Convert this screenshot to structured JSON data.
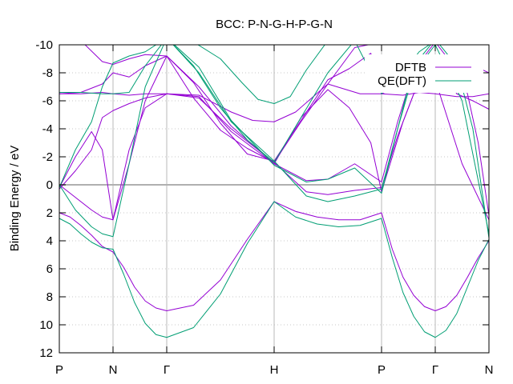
{
  "chart_data": {
    "type": "line",
    "title": "BCC: P-N-G-H-P-G-N",
    "xlabel": "",
    "ylabel": "Binding Energy / eV",
    "ylim": [
      -10,
      12
    ],
    "y_inverted": true,
    "y_ticks": [
      "-10",
      "-8",
      "-6",
      "-4",
      "-2",
      "0",
      "2",
      "4",
      "6",
      "8",
      "10",
      "12"
    ],
    "y_tick_values": [
      -10,
      -8,
      -6,
      -4,
      -2,
      0,
      2,
      4,
      6,
      8,
      10,
      12
    ],
    "xlim": [
      0,
      8
    ],
    "x_tick_values": [
      0,
      1,
      2,
      4,
      6,
      7,
      8
    ],
    "x_ticks": [
      "P",
      "N",
      "Γ",
      "H",
      "P",
      "Γ",
      "N"
    ],
    "grid": "dotted-y, solid-x-at-symmetry-points",
    "zero_line": 0,
    "legend_position": "top-right",
    "colors": {
      "DFTB": "#9400d3",
      "QE(DFT)": "#009e73",
      "zero": "#b0b0b0"
    },
    "series": [
      {
        "name": "DFTB",
        "color": "#9400d3",
        "bands": [
          {
            "x": [
              0,
              0.2,
              0.4,
              0.6,
              0.8,
              1.0,
              1.2,
              1.4,
              1.6,
              1.8,
              2.0,
              2.5,
              3.0,
              3.5,
              4.0,
              4.4,
              4.8,
              5.2,
              5.6,
              6.0,
              6.2,
              6.4,
              6.6,
              6.8,
              7.0,
              7.2,
              7.4,
              7.6,
              7.8,
              8.0
            ],
            "y": [
              2.0,
              2.3,
              2.9,
              3.6,
              4.4,
              4.8,
              5.9,
              7.3,
              8.3,
              8.8,
              9.0,
              8.6,
              6.8,
              3.9,
              1.2,
              1.9,
              2.3,
              2.5,
              2.5,
              2.0,
              4.6,
              6.6,
              7.9,
              8.7,
              9.0,
              8.7,
              7.9,
              6.6,
              5.2,
              4.0
            ]
          },
          {
            "x": [
              0,
              0.3,
              0.6,
              0.8,
              1.0,
              1.3,
              1.6,
              2.0,
              2.6,
              3.2,
              4.0,
              4.6,
              5.0,
              5.5,
              6.0,
              6.3,
              6.6,
              7.0,
              7.4,
              7.6,
              7.8,
              8.0
            ],
            "y": [
              0.0,
              0.9,
              1.8,
              2.3,
              2.5,
              -1.5,
              -6.0,
              -9.2,
              -7.0,
              -4.2,
              -1.5,
              -0.3,
              -0.4,
              -1.5,
              -0.2,
              -4.5,
              -8.2,
              -10.2,
              -8.2,
              -6.5,
              -3.0,
              2.2
            ]
          },
          {
            "x": [
              0,
              0.3,
              0.6,
              0.8,
              1.0,
              1.3,
              1.6,
              2.0,
              2.6,
              3.2,
              4.0,
              4.6,
              5.0,
              5.5,
              6.0,
              6.3,
              6.6,
              7.0,
              7.5,
              8.0
            ],
            "y": [
              0.2,
              -2.0,
              -3.8,
              -2.5,
              2.5,
              -2.5,
              -5.5,
              -6.5,
              -6.2,
              -4.0,
              -1.6,
              0.5,
              0.7,
              0.4,
              0.2,
              -3.5,
              -6.5,
              -7.5,
              -1.5,
              2.5
            ]
          },
          {
            "x": [
              0,
              0.3,
              0.6,
              0.8,
              1.0,
              1.3,
              1.6,
              2.0,
              2.6,
              3.2,
              4.0,
              4.5,
              5.0,
              5.4,
              5.8,
              6.0,
              6.4,
              6.7,
              7.0,
              7.4,
              7.7,
              8.0
            ],
            "y": [
              0.3,
              -1.0,
              -2.5,
              -4.8,
              -5.3,
              -5.8,
              -6.2,
              -6.5,
              -6.3,
              -3.8,
              -1.5,
              -4.8,
              -6.8,
              -5.5,
              -3.0,
              0.5,
              -4.5,
              -7.5,
              -9.2,
              -6.5,
              -6.0,
              -5.4
            ]
          },
          {
            "x": [
              0,
              0.4,
              0.8,
              1.0,
              1.3,
              1.6,
              2.0,
              2.6,
              3.2,
              3.6,
              4.0,
              4.4,
              5.0,
              5.6,
              6.0,
              6.4,
              6.7,
              7.0,
              7.4,
              7.7,
              8.0
            ],
            "y": [
              -6.5,
              -6.5,
              -6.6,
              -6.5,
              -6.4,
              -6.5,
              -6.5,
              -6.4,
              -5.2,
              -4.6,
              -4.5,
              -5.2,
              -7.2,
              -6.5,
              -6.5,
              -6.4,
              -6.6,
              -6.5,
              -6.3,
              -6.3,
              -6.5
            ]
          },
          {
            "x": [
              0,
              0.4,
              0.8,
              1.0,
              1.3,
              1.6,
              2.0,
              2.5,
              3.0,
              3.5,
              4.0,
              4.5,
              5.0,
              5.4,
              5.8,
              6.0,
              6.4,
              6.7,
              7.0,
              7.5,
              8.0
            ],
            "y": [
              -6.5,
              -6.6,
              -7.2,
              -8.0,
              -7.7,
              -8.5,
              -9.2,
              -7.3,
              -4.4,
              -2.2,
              -1.7,
              -4.6,
              -7.5,
              -8.3,
              -9.4,
              -6.5,
              -7.2,
              -8.2,
              -9.0,
              -8.9,
              -8.0
            ]
          },
          {
            "x": [
              0,
              0.4,
              0.8,
              1.0,
              1.3,
              1.6,
              2.0,
              2.5,
              3.0,
              3.5,
              4.0,
              4.5,
              5.0,
              5.5,
              6.0,
              6.5,
              7.0,
              7.5,
              8.0
            ],
            "y": [
              -10.0,
              -10.3,
              -8.8,
              -8.6,
              -9.0,
              -9.3,
              -9.2,
              -6.2,
              -3.9,
              -2.6,
              -1.6,
              -4.5,
              -7.2,
              -9.8,
              -10.2,
              -10.3,
              -10.3,
              -10.2,
              -10.0
            ]
          }
        ]
      },
      {
        "name": "QE(DFT)",
        "color": "#009e73",
        "bands": [
          {
            "x": [
              0,
              0.2,
              0.4,
              0.6,
              0.8,
              1.0,
              1.2,
              1.4,
              1.6,
              1.8,
              2.0,
              2.5,
              3.0,
              3.5,
              4.0,
              4.4,
              4.8,
              5.2,
              5.6,
              6.0,
              6.2,
              6.4,
              6.6,
              6.8,
              7.0,
              7.2,
              7.4,
              7.6,
              7.8,
              8.0
            ],
            "y": [
              2.4,
              2.8,
              3.5,
              4.1,
              4.5,
              4.6,
              6.4,
              8.4,
              9.9,
              10.7,
              10.9,
              10.2,
              7.8,
              4.2,
              1.2,
              2.3,
              2.8,
              3.0,
              2.9,
              2.4,
              5.2,
              7.7,
              9.4,
              10.5,
              10.9,
              10.4,
              9.2,
              7.3,
              5.4,
              3.9
            ]
          },
          {
            "x": [
              0,
              0.3,
              0.6,
              0.8,
              1.0,
              1.3,
              1.6,
              2.0,
              2.6,
              3.2,
              4.0,
              4.6,
              5.0,
              5.5,
              6.0,
              6.3,
              6.6,
              7.0,
              7.4,
              7.7,
              8.0
            ],
            "y": [
              0.0,
              1.8,
              3.0,
              3.5,
              3.7,
              -1.5,
              -7.0,
              -10.5,
              -8.4,
              -4.6,
              -1.4,
              -0.2,
              -0.4,
              -1.2,
              0.6,
              -4.0,
              -8.5,
              -10.4,
              -8.5,
              -4.0,
              3.8
            ]
          },
          {
            "x": [
              0,
              0.3,
              0.6,
              0.8,
              1.0,
              1.3,
              1.6,
              2.0,
              2.6,
              3.2,
              4.0,
              4.6,
              5.0,
              5.5,
              6.0,
              6.3,
              6.6,
              7.0,
              7.5,
              8.0
            ],
            "y": [
              0.2,
              -2.5,
              -4.5,
              -7.0,
              -8.7,
              -9.2,
              -9.5,
              -10.5,
              -8.0,
              -4.5,
              -1.7,
              0.8,
              1.2,
              0.8,
              0.3,
              -4.0,
              -8.0,
              -10.0,
              -6.0,
              3.5
            ]
          },
          {
            "x": [
              0,
              0.4,
              0.8,
              1.0,
              1.3,
              1.6,
              2.0,
              2.5,
              3.0,
              3.5,
              4.0,
              4.5,
              5.0,
              5.5,
              6.0,
              6.4,
              6.7,
              7.0,
              7.5,
              8.0
            ],
            "y": [
              -6.6,
              -6.6,
              -6.5,
              -6.5,
              -6.6,
              -8.5,
              -10.5,
              -8.5,
              -5.5,
              -3.2,
              -1.6,
              -4.8,
              -8.0,
              -10.3,
              -6.5,
              -8.0,
              -9.5,
              -10.3,
              -10.3,
              -10.2
            ]
          },
          {
            "x": [
              0,
              0.5,
              1.0,
              1.5,
              2.0,
              2.5,
              3.0,
              3.4,
              3.7,
              4.0,
              4.3,
              4.6,
              5.0,
              5.4,
              5.8,
              6.0
            ],
            "y": [
              -10.3,
              -10.4,
              -10.3,
              -10.4,
              -10.4,
              -10.2,
              -9.0,
              -7.3,
              -6.1,
              -5.8,
              -6.3,
              -8.2,
              -10.3,
              -10.4,
              -10.3,
              -10.3
            ]
          }
        ]
      }
    ]
  }
}
